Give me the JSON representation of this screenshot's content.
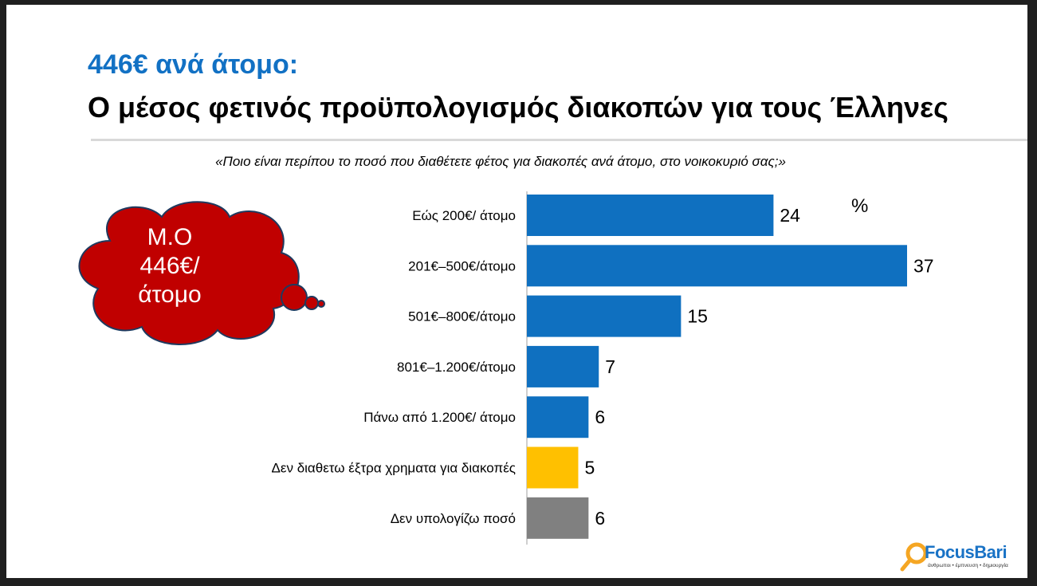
{
  "header": {
    "title_main": "446€ ανά άτομο:",
    "title_sub": "Ο μέσος φετινός προϋπολογισμός διακοπών για τους Έλληνες",
    "question": "«Ποιο είναι περίπου το ποσό που διαθέτετε φέτος για διακοπές ανά άτομο, στο νοικοκυριό σας;»"
  },
  "callout": {
    "line1": "Μ.Ο",
    "line2": "446€/",
    "line3": "άτομο",
    "color": "#c00000"
  },
  "chart_data": {
    "type": "bar",
    "orientation": "horizontal",
    "unit_label": "%",
    "categories": [
      "Εώς 200€/ άτομο",
      "201€–500€/άτομο",
      "501€–800€/άτομο",
      "801€–1.200€/άτομο",
      "Πάνω από 1.200€/ άτομο",
      "Δεν διαθετω έξτρα χρηματα για διακοπές",
      "Δεν υπολογίζω ποσό"
    ],
    "values": [
      24,
      37,
      15,
      7,
      6,
      5,
      6
    ],
    "colors": [
      "#0f70c0",
      "#0f70c0",
      "#0f70c0",
      "#0f70c0",
      "#0f70c0",
      "#ffc000",
      "#808080"
    ],
    "xlim": [
      0,
      37
    ]
  },
  "logo": {
    "name": "FocusBari",
    "tagline": "άνθρωποι • έμπνευση • δημιουργία"
  }
}
